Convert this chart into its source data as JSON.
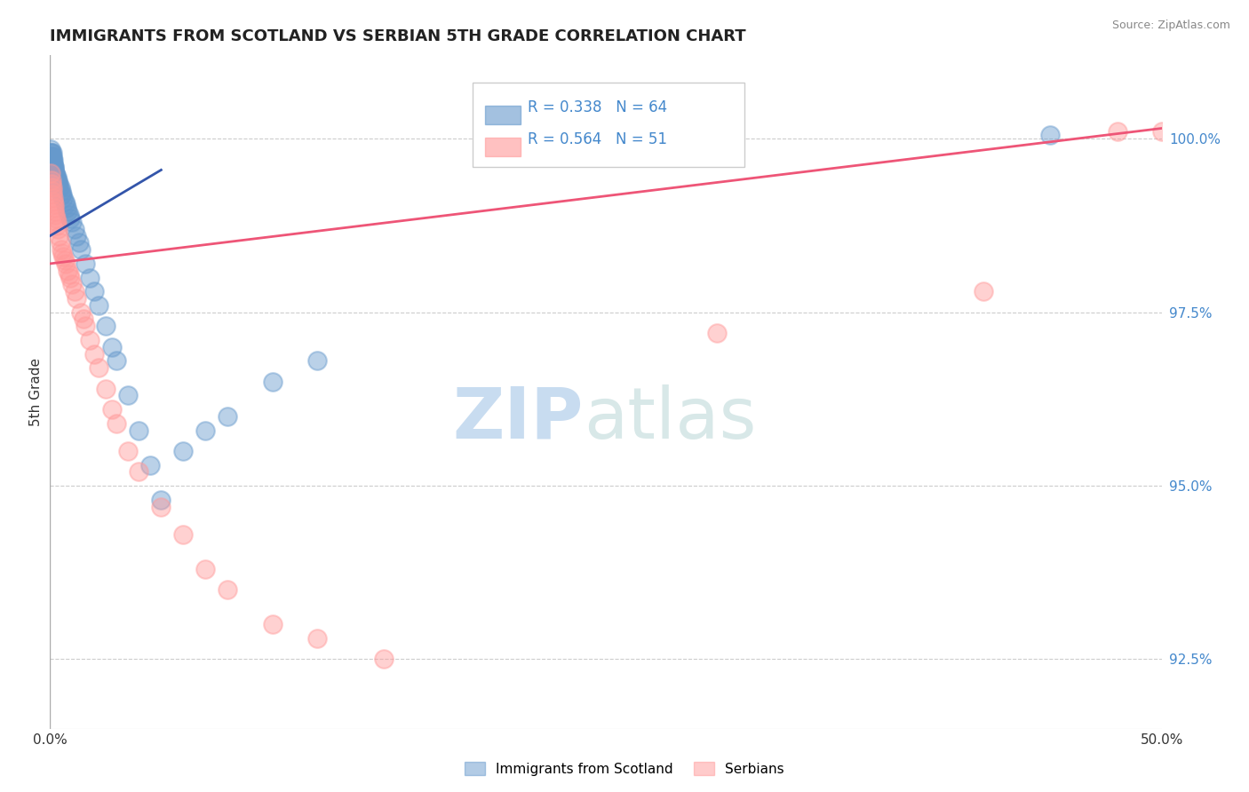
{
  "title": "IMMIGRANTS FROM SCOTLAND VS SERBIAN 5TH GRADE CORRELATION CHART",
  "source": "Source: ZipAtlas.com",
  "ylabel": "5th Grade",
  "scotland_color": "#6699CC",
  "serbian_color": "#FF9999",
  "scotland_R": 0.338,
  "scotland_N": 64,
  "serbian_R": 0.564,
  "serbian_N": 51,
  "scotland_line_color": "#3355AA",
  "serbian_line_color": "#EE5577",
  "legend_label_1": "Immigrants from Scotland",
  "legend_label_2": "Serbians",
  "xlim": [
    0.0,
    50.0
  ],
  "ylim": [
    91.5,
    101.2
  ],
  "yticks": [
    100.0,
    97.5,
    95.0,
    92.5
  ],
  "yticklabels": [
    "100.0%",
    "97.5%",
    "95.0%",
    "92.5%"
  ],
  "xtick_left": "0.0%",
  "xtick_right": "50.0%",
  "scotland_line_x": [
    0.0,
    5.0
  ],
  "scotland_line_y": [
    98.6,
    99.55
  ],
  "serbian_line_x": [
    0.0,
    50.0
  ],
  "serbian_line_y": [
    98.2,
    100.15
  ],
  "scotland_x": [
    0.05,
    0.05,
    0.05,
    0.05,
    0.07,
    0.07,
    0.08,
    0.1,
    0.1,
    0.1,
    0.12,
    0.12,
    0.15,
    0.15,
    0.15,
    0.15,
    0.18,
    0.2,
    0.2,
    0.2,
    0.22,
    0.25,
    0.25,
    0.28,
    0.3,
    0.3,
    0.3,
    0.35,
    0.35,
    0.4,
    0.4,
    0.45,
    0.5,
    0.5,
    0.55,
    0.6,
    0.65,
    0.7,
    0.75,
    0.8,
    0.85,
    0.9,
    1.0,
    1.1,
    1.2,
    1.3,
    1.4,
    1.6,
    1.8,
    2.0,
    2.2,
    2.5,
    2.8,
    3.0,
    3.5,
    4.0,
    4.5,
    5.0,
    6.0,
    7.0,
    8.0,
    10.0,
    12.0,
    45.0
  ],
  "scotland_y": [
    99.85,
    99.8,
    99.75,
    99.7,
    99.8,
    99.75,
    99.7,
    99.8,
    99.75,
    99.7,
    99.7,
    99.65,
    99.7,
    99.65,
    99.6,
    99.55,
    99.6,
    99.6,
    99.55,
    99.5,
    99.5,
    99.5,
    99.45,
    99.45,
    99.45,
    99.4,
    99.35,
    99.4,
    99.35,
    99.35,
    99.3,
    99.3,
    99.25,
    99.2,
    99.2,
    99.15,
    99.1,
    99.05,
    99.0,
    98.95,
    98.9,
    98.85,
    98.8,
    98.7,
    98.6,
    98.5,
    98.4,
    98.2,
    98.0,
    97.8,
    97.6,
    97.3,
    97.0,
    96.8,
    96.3,
    95.8,
    95.3,
    94.8,
    95.5,
    95.8,
    96.0,
    96.5,
    96.8,
    100.05
  ],
  "serbian_x": [
    0.05,
    0.07,
    0.08,
    0.1,
    0.1,
    0.12,
    0.15,
    0.15,
    0.18,
    0.2,
    0.2,
    0.25,
    0.28,
    0.3,
    0.3,
    0.35,
    0.4,
    0.45,
    0.5,
    0.55,
    0.6,
    0.65,
    0.7,
    0.8,
    0.85,
    0.9,
    1.0,
    1.1,
    1.2,
    1.4,
    1.5,
    1.6,
    1.8,
    2.0,
    2.2,
    2.5,
    2.8,
    3.0,
    3.5,
    4.0,
    5.0,
    6.0,
    7.0,
    8.0,
    10.0,
    12.0,
    15.0,
    30.0,
    42.0,
    48.0,
    50.0
  ],
  "serbian_y": [
    99.5,
    99.4,
    99.35,
    99.3,
    99.25,
    99.2,
    99.15,
    99.1,
    99.05,
    99.0,
    98.95,
    98.9,
    98.85,
    98.8,
    98.75,
    98.7,
    98.6,
    98.5,
    98.4,
    98.35,
    98.3,
    98.25,
    98.2,
    98.1,
    98.05,
    98.0,
    97.9,
    97.8,
    97.7,
    97.5,
    97.4,
    97.3,
    97.1,
    96.9,
    96.7,
    96.4,
    96.1,
    95.9,
    95.5,
    95.2,
    94.7,
    94.3,
    93.8,
    93.5,
    93.0,
    92.8,
    92.5,
    97.2,
    97.8,
    100.1,
    100.1
  ]
}
